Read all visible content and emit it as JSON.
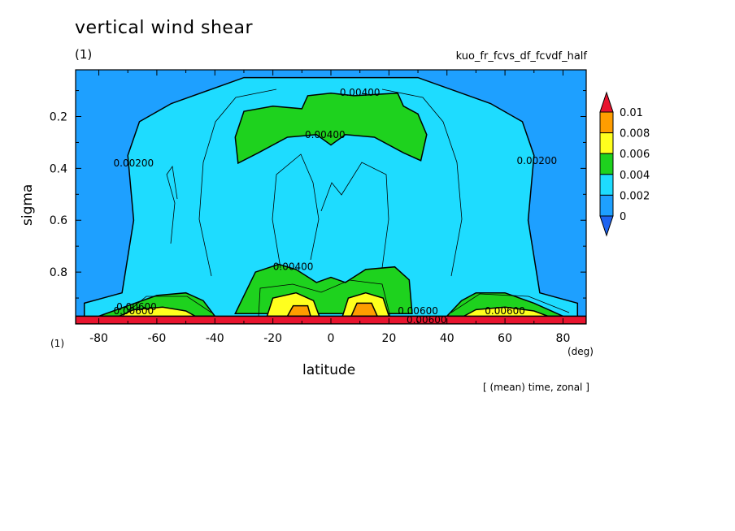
{
  "chart_data": {
    "type": "heatmap",
    "title": "vertical wind shear",
    "subtitle": "(1)",
    "run_name": "kuo_fr_fcvs_df_fcvdf_half",
    "xlabel": "latitude",
    "ylabel": "sigma",
    "x_unit": "(deg)",
    "corner_unit": "(1)",
    "note": "[ (mean) time, zonal ]",
    "xlim": [
      -88,
      88
    ],
    "ylim": [
      1.0,
      0.02
    ],
    "y_reversed": true,
    "x_ticks": [
      {
        "value": -80,
        "label": "-80"
      },
      {
        "value": -60,
        "label": "-60"
      },
      {
        "value": -40,
        "label": "-40"
      },
      {
        "value": -20,
        "label": "-20"
      },
      {
        "value": 0,
        "label": "0"
      },
      {
        "value": 20,
        "label": "20"
      },
      {
        "value": 40,
        "label": "40"
      },
      {
        "value": 60,
        "label": "60"
      },
      {
        "value": 80,
        "label": "80"
      }
    ],
    "y_ticks": [
      {
        "value": 0.2,
        "label": "0.2"
      },
      {
        "value": 0.4,
        "label": "0.4"
      },
      {
        "value": 0.6,
        "label": "0.6"
      },
      {
        "value": 0.8,
        "label": "0.8"
      }
    ],
    "colorbar": {
      "levels": [
        {
          "value": 0.01,
          "label": "0.01"
        },
        {
          "value": 0.008,
          "label": "0.008"
        },
        {
          "value": 0.006,
          "label": "0.006"
        },
        {
          "value": 0.004,
          "label": "0.004"
        },
        {
          "value": 0.002,
          "label": "0.002"
        },
        {
          "value": 0,
          "label": "0"
        }
      ],
      "colors": [
        "#e8142e",
        "#ff9d00",
        "#ffff1e",
        "#1ed21e",
        "#1edcff",
        "#1ea0ff",
        "#1e64f0"
      ]
    },
    "regions": [
      {
        "level": "0.002-0.004",
        "color": "#1edcff",
        "points": [
          [
            -85,
            0.92
          ],
          [
            -72,
            0.88
          ],
          [
            -68,
            0.6
          ],
          [
            -70,
            0.35
          ],
          [
            -66,
            0.22
          ],
          [
            -55,
            0.15
          ],
          [
            -30,
            0.05
          ],
          [
            0,
            0.05
          ],
          [
            30,
            0.05
          ],
          [
            55,
            0.15
          ],
          [
            66,
            0.22
          ],
          [
            70,
            0.35
          ],
          [
            68,
            0.6
          ],
          [
            72,
            0.88
          ],
          [
            85,
            0.92
          ],
          [
            85,
            1.0
          ],
          [
            -85,
            1.0
          ]
        ]
      },
      {
        "level": "0.004-0.006",
        "color": "#1ed21e",
        "points": [
          [
            -33,
            0.96
          ],
          [
            -26,
            0.8
          ],
          [
            -18,
            0.77
          ],
          [
            -12,
            0.79
          ],
          [
            -5,
            0.84
          ],
          [
            0,
            0.82
          ],
          [
            5,
            0.84
          ],
          [
            12,
            0.79
          ],
          [
            22,
            0.78
          ],
          [
            27,
            0.83
          ],
          [
            28,
            0.96
          ]
        ]
      },
      {
        "level": "0.004-0.006",
        "color": "#1ed21e",
        "points": [
          [
            -32,
            0.38
          ],
          [
            -33,
            0.28
          ],
          [
            -30,
            0.18
          ],
          [
            -20,
            0.16
          ],
          [
            -10,
            0.17
          ],
          [
            -8,
            0.12
          ],
          [
            0,
            0.11
          ],
          [
            8,
            0.12
          ],
          [
            23,
            0.11
          ],
          [
            25,
            0.16
          ],
          [
            30,
            0.19
          ],
          [
            33,
            0.27
          ],
          [
            31,
            0.37
          ],
          [
            25,
            0.34
          ],
          [
            15,
            0.28
          ],
          [
            5,
            0.27
          ],
          [
            0,
            0.31
          ],
          [
            -5,
            0.27
          ],
          [
            -15,
            0.28
          ],
          [
            -25,
            0.34
          ]
        ]
      },
      {
        "level": "0.004-0.006",
        "color": "#1ed21e",
        "points": [
          [
            -80,
            0.97
          ],
          [
            -70,
            0.93
          ],
          [
            -60,
            0.89
          ],
          [
            -50,
            0.88
          ],
          [
            -44,
            0.91
          ],
          [
            -40,
            0.97
          ]
        ]
      },
      {
        "level": "0.004-0.006",
        "color": "#1ed21e",
        "points": [
          [
            40,
            0.97
          ],
          [
            45,
            0.91
          ],
          [
            50,
            0.88
          ],
          [
            60,
            0.88
          ],
          [
            70,
            0.92
          ],
          [
            80,
            0.97
          ]
        ]
      },
      {
        "level": "0.006-0.008",
        "color": "#ffff1e",
        "points": [
          [
            -22,
            0.97
          ],
          [
            -20,
            0.9
          ],
          [
            -12,
            0.88
          ],
          [
            -6,
            0.91
          ],
          [
            -4,
            0.97
          ]
        ]
      },
      {
        "level": "0.006-0.008",
        "color": "#ffff1e",
        "points": [
          [
            4,
            0.97
          ],
          [
            6,
            0.9
          ],
          [
            12,
            0.88
          ],
          [
            18,
            0.9
          ],
          [
            20,
            0.97
          ]
        ]
      },
      {
        "level": "0.006-0.008",
        "color": "#ffff1e",
        "points": [
          [
            -74,
            0.975
          ],
          [
            -68,
            0.945
          ],
          [
            -58,
            0.935
          ],
          [
            -50,
            0.95
          ],
          [
            -46,
            0.975
          ]
        ]
      },
      {
        "level": "0.006-0.008",
        "color": "#ffff1e",
        "points": [
          [
            45,
            0.975
          ],
          [
            50,
            0.945
          ],
          [
            60,
            0.935
          ],
          [
            70,
            0.95
          ],
          [
            76,
            0.975
          ]
        ]
      },
      {
        "level": "0.008-0.010",
        "color": "#ff9d00",
        "points": [
          [
            -15,
            0.97
          ],
          [
            -13,
            0.93
          ],
          [
            -8,
            0.93
          ],
          [
            -7,
            0.97
          ]
        ]
      },
      {
        "level": "0.008-0.010",
        "color": "#ff9d00",
        "points": [
          [
            7,
            0.97
          ],
          [
            9,
            0.92
          ],
          [
            14,
            0.92
          ],
          [
            16,
            0.97
          ]
        ]
      },
      {
        "level": ">0.010",
        "color": "#e8142e",
        "points": [
          [
            -88,
            0.97
          ],
          [
            88,
            0.97
          ],
          [
            88,
            1.0
          ],
          [
            -88,
            1.0
          ]
        ]
      }
    ],
    "contour_labels": [
      {
        "text": "0.00400",
        "x": 10,
        "y": 0.107
      },
      {
        "text": "0.00400",
        "x": -2,
        "y": 0.27
      },
      {
        "text": "0.00400",
        "x": -13,
        "y": 0.78
      },
      {
        "text": "0.00200",
        "x": -68,
        "y": 0.38
      },
      {
        "text": "0.00200",
        "x": 71,
        "y": 0.37
      },
      {
        "text": "0.00600",
        "x": -67,
        "y": 0.935
      },
      {
        "text": "0.00600",
        "x": -68,
        "y": 0.95
      },
      {
        "text": "0.00600",
        "x": 30,
        "y": 0.95
      },
      {
        "text": "0.00600",
        "x": 60,
        "y": 0.95
      },
      {
        "text": "0.00600",
        "x": 33,
        "y": 0.985
      }
    ]
  }
}
